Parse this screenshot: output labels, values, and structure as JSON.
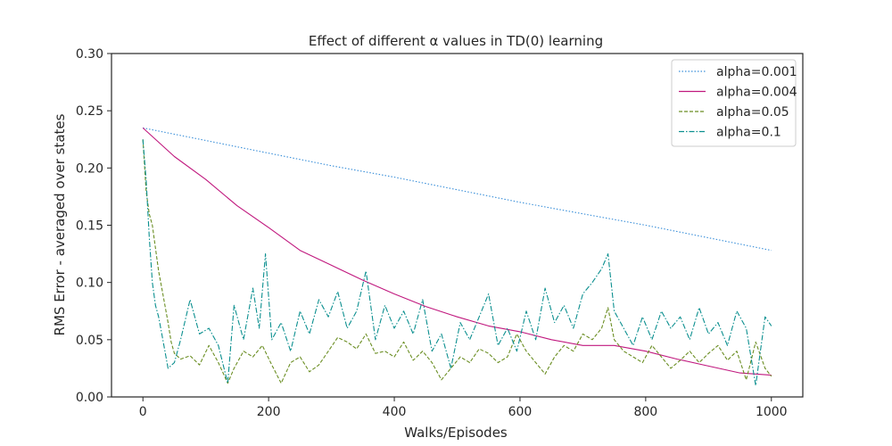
{
  "chart_data": {
    "type": "line",
    "title": "Effect of different α values in TD(0) learning",
    "xlabel": "Walks/Episodes",
    "ylabel": "RMS Error - averaged over states",
    "xlim": [
      -50,
      1050
    ],
    "ylim": [
      0.0,
      0.3
    ],
    "xticks": [
      0,
      200,
      400,
      600,
      800,
      1000
    ],
    "yticks": [
      0.0,
      0.05,
      0.1,
      0.15,
      0.2,
      0.25,
      0.3
    ],
    "grid": false,
    "legend_position": "top-right",
    "series": [
      {
        "name": "alpha=0.001",
        "color": "#3a8fd9",
        "dash": "1.5,2",
        "x": [
          0,
          100,
          200,
          300,
          400,
          500,
          600,
          700,
          800,
          900,
          1000
        ],
        "y": [
          0.235,
          0.224,
          0.213,
          0.202,
          0.192,
          0.181,
          0.17,
          0.16,
          0.15,
          0.139,
          0.128
        ]
      },
      {
        "name": "alpha=0.004",
        "color": "#c0187e",
        "dash": "",
        "x": [
          0,
          50,
          100,
          150,
          200,
          250,
          300,
          350,
          400,
          450,
          500,
          550,
          600,
          650,
          700,
          750,
          800,
          850,
          900,
          950,
          1000
        ],
        "y": [
          0.235,
          0.21,
          0.19,
          0.167,
          0.148,
          0.128,
          0.115,
          0.102,
          0.09,
          0.079,
          0.07,
          0.062,
          0.057,
          0.05,
          0.045,
          0.045,
          0.04,
          0.033,
          0.027,
          0.021,
          0.019
        ]
      },
      {
        "name": "alpha=0.05",
        "color": "#6b8e23",
        "dash": "4,2",
        "x": [
          0,
          5,
          10,
          15,
          20,
          25,
          30,
          35,
          40,
          45,
          50,
          60,
          75,
          90,
          105,
          120,
          135,
          145,
          160,
          175,
          190,
          205,
          220,
          235,
          250,
          265,
          280,
          295,
          310,
          325,
          340,
          355,
          370,
          385,
          400,
          415,
          430,
          445,
          460,
          475,
          490,
          505,
          520,
          535,
          550,
          565,
          580,
          595,
          610,
          625,
          640,
          655,
          670,
          685,
          700,
          715,
          730,
          740,
          750,
          765,
          780,
          795,
          810,
          825,
          840,
          855,
          870,
          885,
          900,
          915,
          930,
          945,
          960,
          975,
          990,
          1000
        ],
        "y": [
          0.225,
          0.18,
          0.16,
          0.15,
          0.13,
          0.11,
          0.095,
          0.08,
          0.065,
          0.048,
          0.038,
          0.033,
          0.036,
          0.028,
          0.045,
          0.03,
          0.012,
          0.025,
          0.04,
          0.035,
          0.045,
          0.028,
          0.012,
          0.03,
          0.035,
          0.022,
          0.028,
          0.04,
          0.052,
          0.048,
          0.042,
          0.055,
          0.038,
          0.04,
          0.035,
          0.048,
          0.032,
          0.04,
          0.03,
          0.015,
          0.025,
          0.035,
          0.03,
          0.042,
          0.038,
          0.03,
          0.035,
          0.055,
          0.04,
          0.03,
          0.02,
          0.035,
          0.045,
          0.04,
          0.055,
          0.05,
          0.06,
          0.078,
          0.05,
          0.04,
          0.035,
          0.03,
          0.045,
          0.035,
          0.025,
          0.032,
          0.04,
          0.03,
          0.038,
          0.045,
          0.032,
          0.04,
          0.015,
          0.048,
          0.025,
          0.018
        ]
      },
      {
        "name": "alpha=0.1",
        "color": "#0b8f8f",
        "dash": "6,2,1.5,2",
        "x": [
          0,
          5,
          10,
          15,
          20,
          25,
          30,
          40,
          50,
          60,
          75,
          90,
          105,
          120,
          135,
          145,
          160,
          175,
          185,
          195,
          205,
          220,
          235,
          250,
          265,
          280,
          295,
          310,
          325,
          340,
          355,
          370,
          385,
          400,
          415,
          430,
          445,
          460,
          475,
          490,
          505,
          520,
          535,
          550,
          565,
          580,
          595,
          610,
          625,
          640,
          655,
          670,
          685,
          700,
          715,
          730,
          740,
          750,
          765,
          780,
          795,
          810,
          825,
          840,
          855,
          870,
          885,
          900,
          915,
          930,
          945,
          960,
          975,
          990,
          1000
        ],
        "y": [
          0.225,
          0.19,
          0.14,
          0.1,
          0.08,
          0.07,
          0.055,
          0.025,
          0.03,
          0.05,
          0.085,
          0.055,
          0.06,
          0.045,
          0.012,
          0.08,
          0.05,
          0.095,
          0.06,
          0.125,
          0.05,
          0.065,
          0.04,
          0.075,
          0.055,
          0.085,
          0.07,
          0.092,
          0.06,
          0.075,
          0.11,
          0.05,
          0.08,
          0.06,
          0.075,
          0.055,
          0.085,
          0.04,
          0.055,
          0.025,
          0.065,
          0.05,
          0.07,
          0.09,
          0.045,
          0.06,
          0.04,
          0.075,
          0.05,
          0.095,
          0.065,
          0.08,
          0.06,
          0.09,
          0.1,
          0.112,
          0.125,
          0.075,
          0.06,
          0.045,
          0.07,
          0.05,
          0.075,
          0.06,
          0.07,
          0.05,
          0.078,
          0.055,
          0.065,
          0.045,
          0.075,
          0.06,
          0.01,
          0.07,
          0.062
        ]
      }
    ]
  }
}
